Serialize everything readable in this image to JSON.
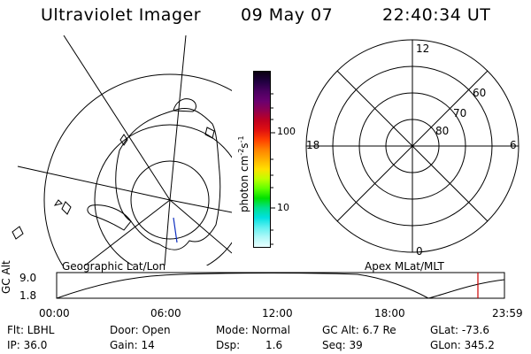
{
  "header": {
    "instrument": "Ultraviolet Imager",
    "date": "09 May 07",
    "time": "22:40:34 UT"
  },
  "geo_panel": {
    "caption": "Geographic Lat/Lon"
  },
  "colorbar": {
    "unit_label": "photon cm",
    "unit_exp1": "-2",
    "unit_s": "s",
    "unit_exp2": "-1",
    "ticks": [
      "100",
      "10"
    ],
    "colors": [
      "#0a0010",
      "#200040",
      "#4a0060",
      "#6a0070",
      "#900050",
      "#c00020",
      "#e01010",
      "#ff4000",
      "#ff8000",
      "#ffb000",
      "#ffe000",
      "#c0ff00",
      "#60ff00",
      "#00e000",
      "#00e090",
      "#00e0e0",
      "#60f0f0",
      "#b0f8f8",
      "#e8ffff"
    ]
  },
  "mlt_panel": {
    "caption": "Apex MLat/MLT",
    "mlt_labels": {
      "top": "12",
      "left": "18",
      "right": "6",
      "bottom": "0"
    },
    "lat_labels": [
      "60",
      "70",
      "80"
    ]
  },
  "timeline": {
    "ylabel": "GC Alt",
    "y_ticks": [
      "9.0",
      "1.8"
    ],
    "x_ticks": [
      "00:00",
      "06:00",
      "12:00",
      "18:00",
      "23:59"
    ],
    "current_time_color": "#cc0000"
  },
  "status": {
    "flt": "Flt: LBHL",
    "ip": "IP: 36.0",
    "door": "Door: Open",
    "gain": "Gain: 14",
    "mode": "Mode: Normal",
    "dsp_label": "Dsp:",
    "dsp_value": "1.6",
    "gc_alt": "GC Alt: 6.7 Re",
    "seq": "Seq: 39",
    "glat": "GLat: -73.6",
    "glon": "GLon: 345.2"
  }
}
